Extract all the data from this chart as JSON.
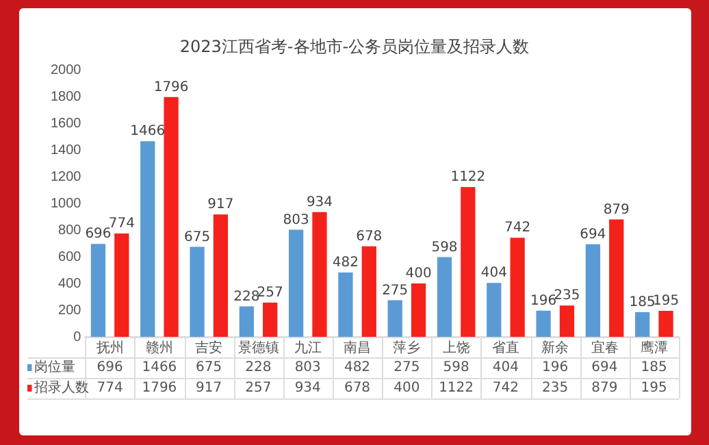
{
  "chart_data": {
    "type": "bar",
    "title": "2023江西省考-各地市-公务员岗位量及招录人数",
    "categories": [
      "抚州",
      "赣州",
      "吉安",
      "景德镇",
      "九江",
      "南昌",
      "萍乡",
      "上饶",
      "省直",
      "新余",
      "宜春",
      "鹰潭"
    ],
    "series": [
      {
        "name": "岗位量",
        "color": "#5b9bd5",
        "values": [
          696,
          1466,
          675,
          228,
          803,
          482,
          275,
          598,
          404,
          196,
          694,
          185
        ]
      },
      {
        "name": "招录人数",
        "color": "#f5221b",
        "values": [
          774,
          1796,
          917,
          257,
          934,
          678,
          400,
          1122,
          742,
          235,
          879,
          195
        ]
      }
    ],
    "annotations": [
      "696",
      "1466",
      "675",
      "228",
      "803",
      "482",
      "275",
      "598",
      "404",
      "196",
      "694",
      "185",
      "774",
      "1796",
      "917",
      "257",
      "934",
      "678",
      "400",
      "1122",
      "742",
      "235",
      "879",
      "195"
    ],
    "ylim": [
      0,
      2000
    ],
    "yticks": [
      0,
      200,
      400,
      600,
      800,
      1000,
      1200,
      1400,
      1600,
      1800,
      2000
    ],
    "grid": false,
    "legend": "bottom",
    "data_labels": true
  }
}
